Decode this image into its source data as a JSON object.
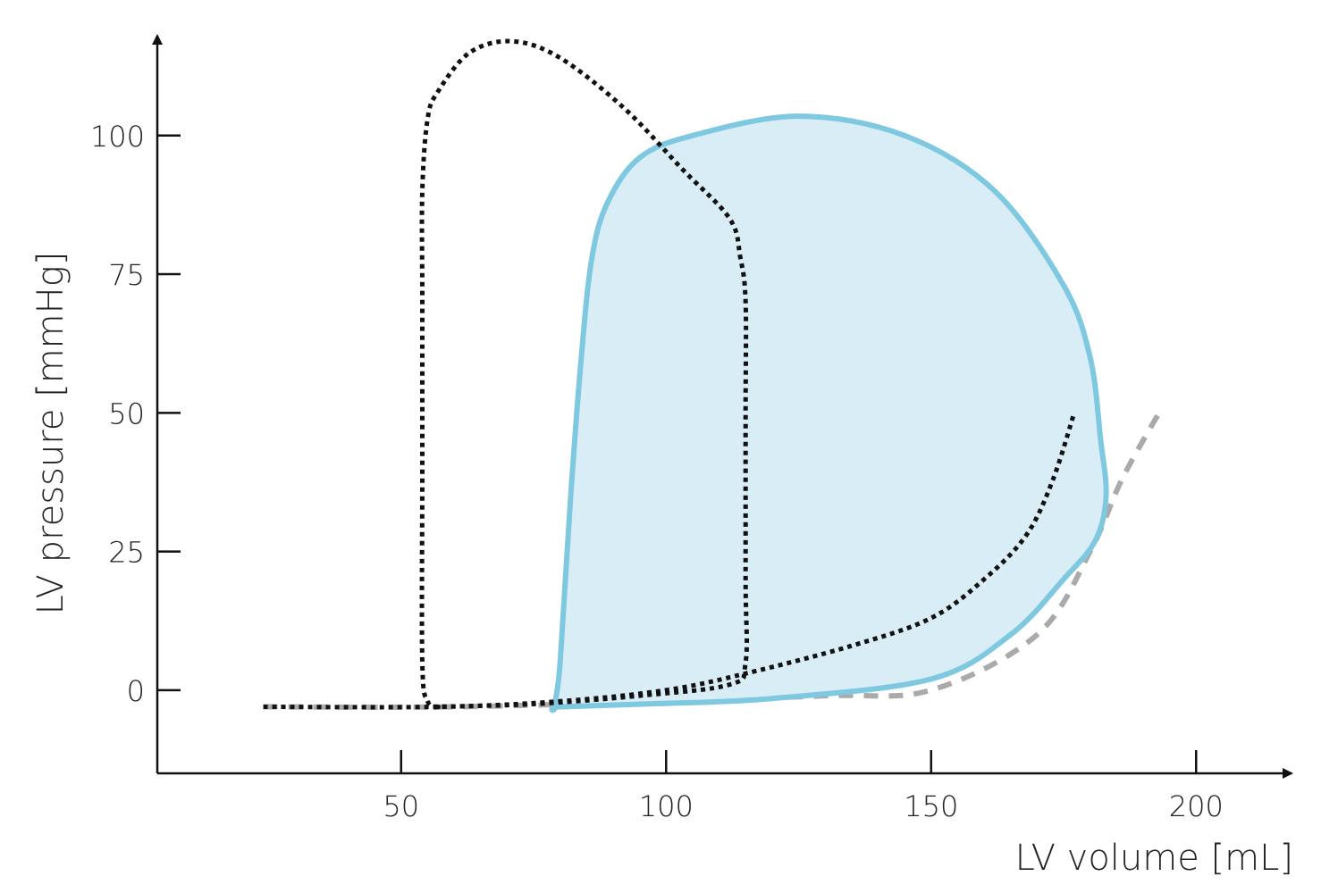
{
  "chart_data": {
    "type": "line",
    "title": "",
    "xlabel": "LV volume [mL]",
    "ylabel": "LV pressure [mmHg]",
    "xlim": [
      4,
      218
    ],
    "ylim": [
      -15,
      118
    ],
    "xticks": [
      50,
      100,
      150,
      200
    ],
    "yticks": [
      0,
      25,
      50,
      75,
      100
    ],
    "grid": false,
    "legend": "none",
    "colors": {
      "loop_fill": "#d8edf6",
      "loop_stroke": "#7ec8e0",
      "dotted": "#111111",
      "dashed": "#aaaaaa"
    },
    "series": [
      {
        "style": "filled-solid",
        "closed": true,
        "points": [
          [
            79,
            -3
          ],
          [
            80,
            5
          ],
          [
            82,
            35
          ],
          [
            84,
            60
          ],
          [
            86,
            78
          ],
          [
            89,
            88
          ],
          [
            95,
            96
          ],
          [
            105,
            100
          ],
          [
            125,
            103.5
          ],
          [
            145,
            100
          ],
          [
            162,
            90
          ],
          [
            175,
            73
          ],
          [
            180,
            60
          ],
          [
            182,
            45
          ],
          [
            183,
            35
          ],
          [
            181,
            27
          ],
          [
            175,
            20
          ],
          [
            165,
            10
          ],
          [
            150,
            2
          ],
          [
            120,
            -1.5
          ],
          [
            96,
            -2.5
          ],
          [
            80,
            -3
          ]
        ]
      },
      {
        "style": "dotted",
        "closed": true,
        "points": [
          [
            57,
            -3
          ],
          [
            55,
            -2
          ],
          [
            54,
            5
          ],
          [
            54,
            40
          ],
          [
            54,
            70
          ],
          [
            54,
            90
          ],
          [
            55,
            103
          ],
          [
            57,
            108
          ],
          [
            63,
            115
          ],
          [
            71,
            117
          ],
          [
            80,
            114
          ],
          [
            92,
            105
          ],
          [
            103,
            94
          ],
          [
            112,
            85
          ],
          [
            114,
            78
          ],
          [
            115,
            70
          ],
          [
            115,
            50
          ],
          [
            115,
            20
          ],
          [
            115,
            5
          ],
          [
            112,
            1
          ],
          [
            95,
            -1
          ],
          [
            75,
            -2.5
          ],
          [
            57,
            -3
          ]
        ]
      },
      {
        "style": "dotted",
        "closed": false,
        "points": [
          [
            24,
            -3
          ],
          [
            57,
            -3
          ],
          [
            80,
            -2
          ],
          [
            100,
            0
          ],
          [
            115,
            3
          ],
          [
            135,
            8
          ],
          [
            150,
            13
          ],
          [
            160,
            20
          ],
          [
            168,
            28
          ],
          [
            173,
            38
          ],
          [
            177,
            50
          ]
        ]
      },
      {
        "style": "dashed",
        "closed": false,
        "points": [
          [
            24,
            -3
          ],
          [
            60,
            -3
          ],
          [
            100,
            -2
          ],
          [
            130,
            -1
          ],
          [
            150,
            0
          ],
          [
            170,
            10
          ],
          [
            180,
            25
          ],
          [
            186,
            38
          ],
          [
            193,
            50
          ]
        ]
      }
    ]
  }
}
